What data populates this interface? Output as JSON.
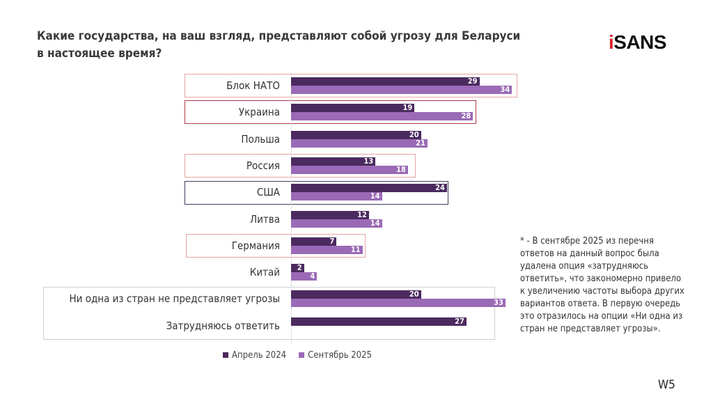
{
  "title": "Какие государства, на ваш взгляд, представляют собой угрозу для Беларуси в настоящее время?",
  "logo": {
    "i": "i",
    "rest": "SANS"
  },
  "colors": {
    "april": "#4b2a5f",
    "sept": "#9a6ab6"
  },
  "chart_data": {
    "type": "bar",
    "orientation": "horizontal",
    "categories": [
      "Блок НАТО",
      "Украина",
      "Польша",
      "Россия",
      "США",
      "Литва",
      "Германия",
      "Китай",
      "Ни одна из стран не представляет угрозы",
      "Затрудняюсь ответить"
    ],
    "series": [
      {
        "name": "Апрель 2024",
        "values": [
          29,
          19,
          20,
          13,
          24,
          12,
          7,
          2,
          20,
          27
        ]
      },
      {
        "name": "Сентябрь 2025",
        "values": [
          34,
          28,
          21,
          18,
          14,
          14,
          11,
          4,
          33,
          null
        ]
      }
    ],
    "legend": "bottom",
    "grid": false
  },
  "note": "* - В сентябре 2025 из перечня ответов на данный вопрос была удалена опция «затрудняюсь ответить», что закономерно привело к увеличению частоты выбора других вариантов ответа. В первую очередь это отразилось на опции «Ни одна из стран не представляет угрозы».",
  "page": "W5"
}
